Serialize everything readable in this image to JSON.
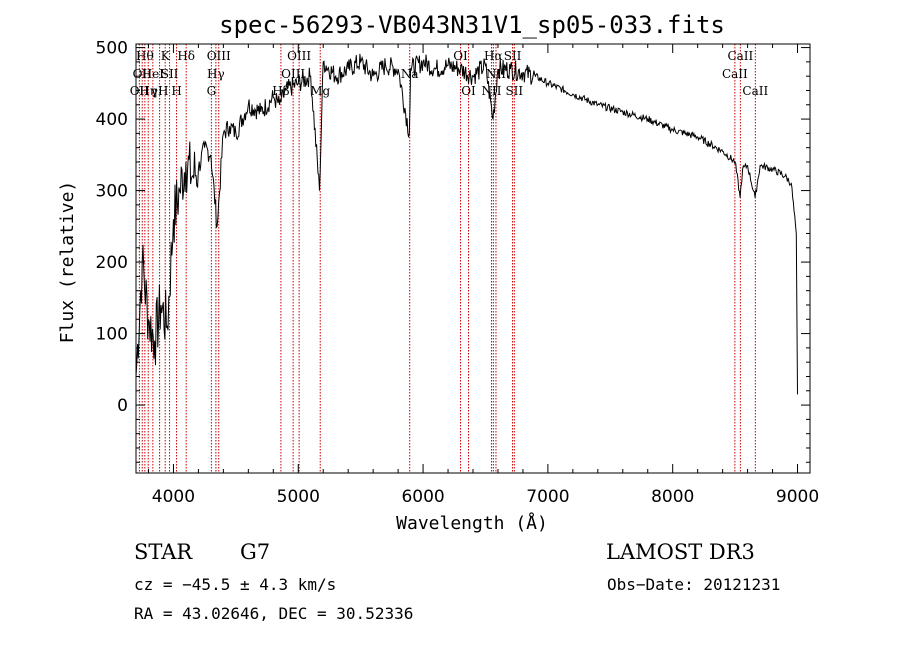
{
  "chart_data": {
    "type": "line",
    "title": "spec-56293-VB043N31V1_sp05-033.fits",
    "xlabel": "Wavelength (Å)",
    "ylabel": "Flux (relative)",
    "xlim": [
      3700,
      9100
    ],
    "ylim": [
      -95,
      505
    ],
    "xticks": [
      "4000",
      "5000",
      "6000",
      "7000",
      "8000",
      "9000"
    ],
    "xtick_values": [
      4000,
      5000,
      6000,
      7000,
      8000,
      9000
    ],
    "yticks": [
      "0",
      "100",
      "200",
      "300",
      "400",
      "500"
    ],
    "ytick_values": [
      0,
      100,
      200,
      300,
      400,
      500
    ],
    "series": [
      {
        "name": "spectrum",
        "x": [
          3700,
          3750,
          3800,
          3850,
          3900,
          3950,
          4000,
          4050,
          4100,
          4150,
          4200,
          4250,
          4300,
          4350,
          4400,
          4450,
          4500,
          4600,
          4700,
          4800,
          4850,
          4900,
          5000,
          5100,
          5170,
          5200,
          5300,
          5400,
          5500,
          5600,
          5700,
          5800,
          5890,
          5900,
          6000,
          6100,
          6200,
          6300,
          6400,
          6500,
          6560,
          6600,
          6700,
          6800,
          6900,
          7000,
          7200,
          7400,
          7600,
          7800,
          8000,
          8200,
          8400,
          8500,
          8540,
          8560,
          8600,
          8660,
          8700,
          8800,
          8900,
          8950,
          8990,
          9000
        ],
        "y": [
          40,
          200,
          120,
          90,
          140,
          110,
          260,
          300,
          340,
          320,
          330,
          360,
          350,
          250,
          380,
          390,
          380,
          420,
          410,
          430,
          420,
          440,
          450,
          460,
          300,
          480,
          460,
          470,
          480,
          460,
          475,
          470,
          380,
          470,
          480,
          470,
          475,
          470,
          460,
          475,
          400,
          470,
          470,
          465,
          460,
          450,
          435,
          420,
          410,
          400,
          385,
          375,
          355,
          340,
          290,
          330,
          335,
          290,
          335,
          330,
          320,
          310,
          240,
          15
        ]
      }
    ],
    "lines": [
      {
        "wavelength": 3727,
        "label": "OII",
        "row": 2
      },
      {
        "wavelength": 3750,
        "label": "OII",
        "row": 1
      },
      {
        "wavelength": 3771,
        "label": "Hθ",
        "row": 0
      },
      {
        "wavelength": 3798,
        "label": "Hη",
        "row": 2
      },
      {
        "wavelength": 3835,
        "label": "HeI",
        "row": 1
      },
      {
        "wavelength": 3889,
        "label": "γH",
        "row": 2
      },
      {
        "wavelength": 3934,
        "label": "K",
        "row": 0
      },
      {
        "wavelength": 3969,
        "label": "SII",
        "row": 1
      },
      {
        "wavelength": 4025,
        "label": "H",
        "row": 2
      },
      {
        "wavelength": 4102,
        "label": "Hδ",
        "row": 0
      },
      {
        "wavelength": 4304,
        "label": "G",
        "row": 2
      },
      {
        "wavelength": 4340,
        "label": "Hγ",
        "row": 1
      },
      {
        "wavelength": 4363,
        "label": "OIII",
        "row": 0
      },
      {
        "wavelength": 4861,
        "label": "Hβ",
        "row": 2
      },
      {
        "wavelength": 4959,
        "label": "OIII",
        "row": 1
      },
      {
        "wavelength": 5007,
        "label": "OIII",
        "row": 0
      },
      {
        "wavelength": 5176,
        "label": "Mg",
        "row": 2
      },
      {
        "wavelength": 5893,
        "label": "Na",
        "row": 1
      },
      {
        "wavelength": 6300,
        "label": "OI",
        "row": 0
      },
      {
        "wavelength": 6364,
        "label": "OI",
        "row": 2
      },
      {
        "wavelength": 6548,
        "label": "NII",
        "row": 2
      },
      {
        "wavelength": 6563,
        "label": "Hα",
        "row": 0
      },
      {
        "wavelength": 6584,
        "label": "NII",
        "row": 1
      },
      {
        "wavelength": 6717,
        "label": "SII",
        "row": 0
      },
      {
        "wavelength": 6731,
        "label": "SII",
        "row": 2
      },
      {
        "wavelength": 8498,
        "label": "CaII",
        "row": 1
      },
      {
        "wavelength": 8542,
        "label": "CaII",
        "row": 0
      },
      {
        "wavelength": 8662,
        "label": "CaII",
        "row": 2
      }
    ],
    "line_color": "#cc0000",
    "trace_color": "#000000"
  },
  "info": {
    "class_label": "STAR",
    "subclass": "G7",
    "survey": "LAMOST DR3",
    "redshift": "cz = −45.5 ± 4.3 km/s",
    "obs_date": "Obs−Date: 20121231",
    "coords": "RA =  43.02646, DEC =  30.52336"
  }
}
